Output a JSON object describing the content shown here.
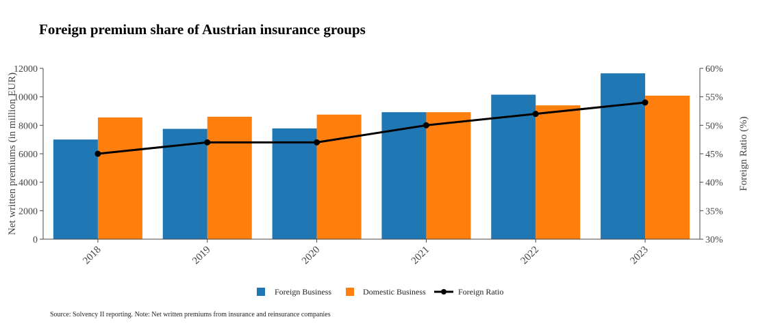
{
  "chart_data": {
    "type": "bar",
    "title": "Foreign premium share of Austrian insurance groups",
    "categories": [
      "2018",
      "2019",
      "2020",
      "2021",
      "2022",
      "2023"
    ],
    "series": [
      {
        "name": "Foreign Business",
        "type": "bar",
        "axis": "left",
        "color": "#1f77b4",
        "values": [
          7000,
          7750,
          7780,
          8920,
          10150,
          11650
        ]
      },
      {
        "name": "Domestic Business",
        "type": "bar",
        "axis": "left",
        "color": "#ff7f0e",
        "values": [
          8550,
          8600,
          8750,
          8920,
          9400,
          10080
        ]
      },
      {
        "name": "Foreign Ratio",
        "type": "line",
        "axis": "right",
        "color": "#000000",
        "values": [
          45,
          47,
          47,
          50,
          52,
          54
        ]
      }
    ],
    "ylabel": "Net written premiums (in million EUR)",
    "y2label": "Foreign Ratio (%)",
    "ylim": [
      0,
      12000
    ],
    "y2lim": [
      30,
      60
    ],
    "yticks": [
      "0",
      "2000",
      "4000",
      "6000",
      "8000",
      "10000",
      "12000"
    ],
    "y2ticks": [
      "30%",
      "35%",
      "40%",
      "45%",
      "50%",
      "55%",
      "60%"
    ],
    "legend_position": "bottom-center",
    "grid": false,
    "source": "Source: Solvency II reporting. Note: Net written premiums from insurance and reinsurance companies"
  }
}
